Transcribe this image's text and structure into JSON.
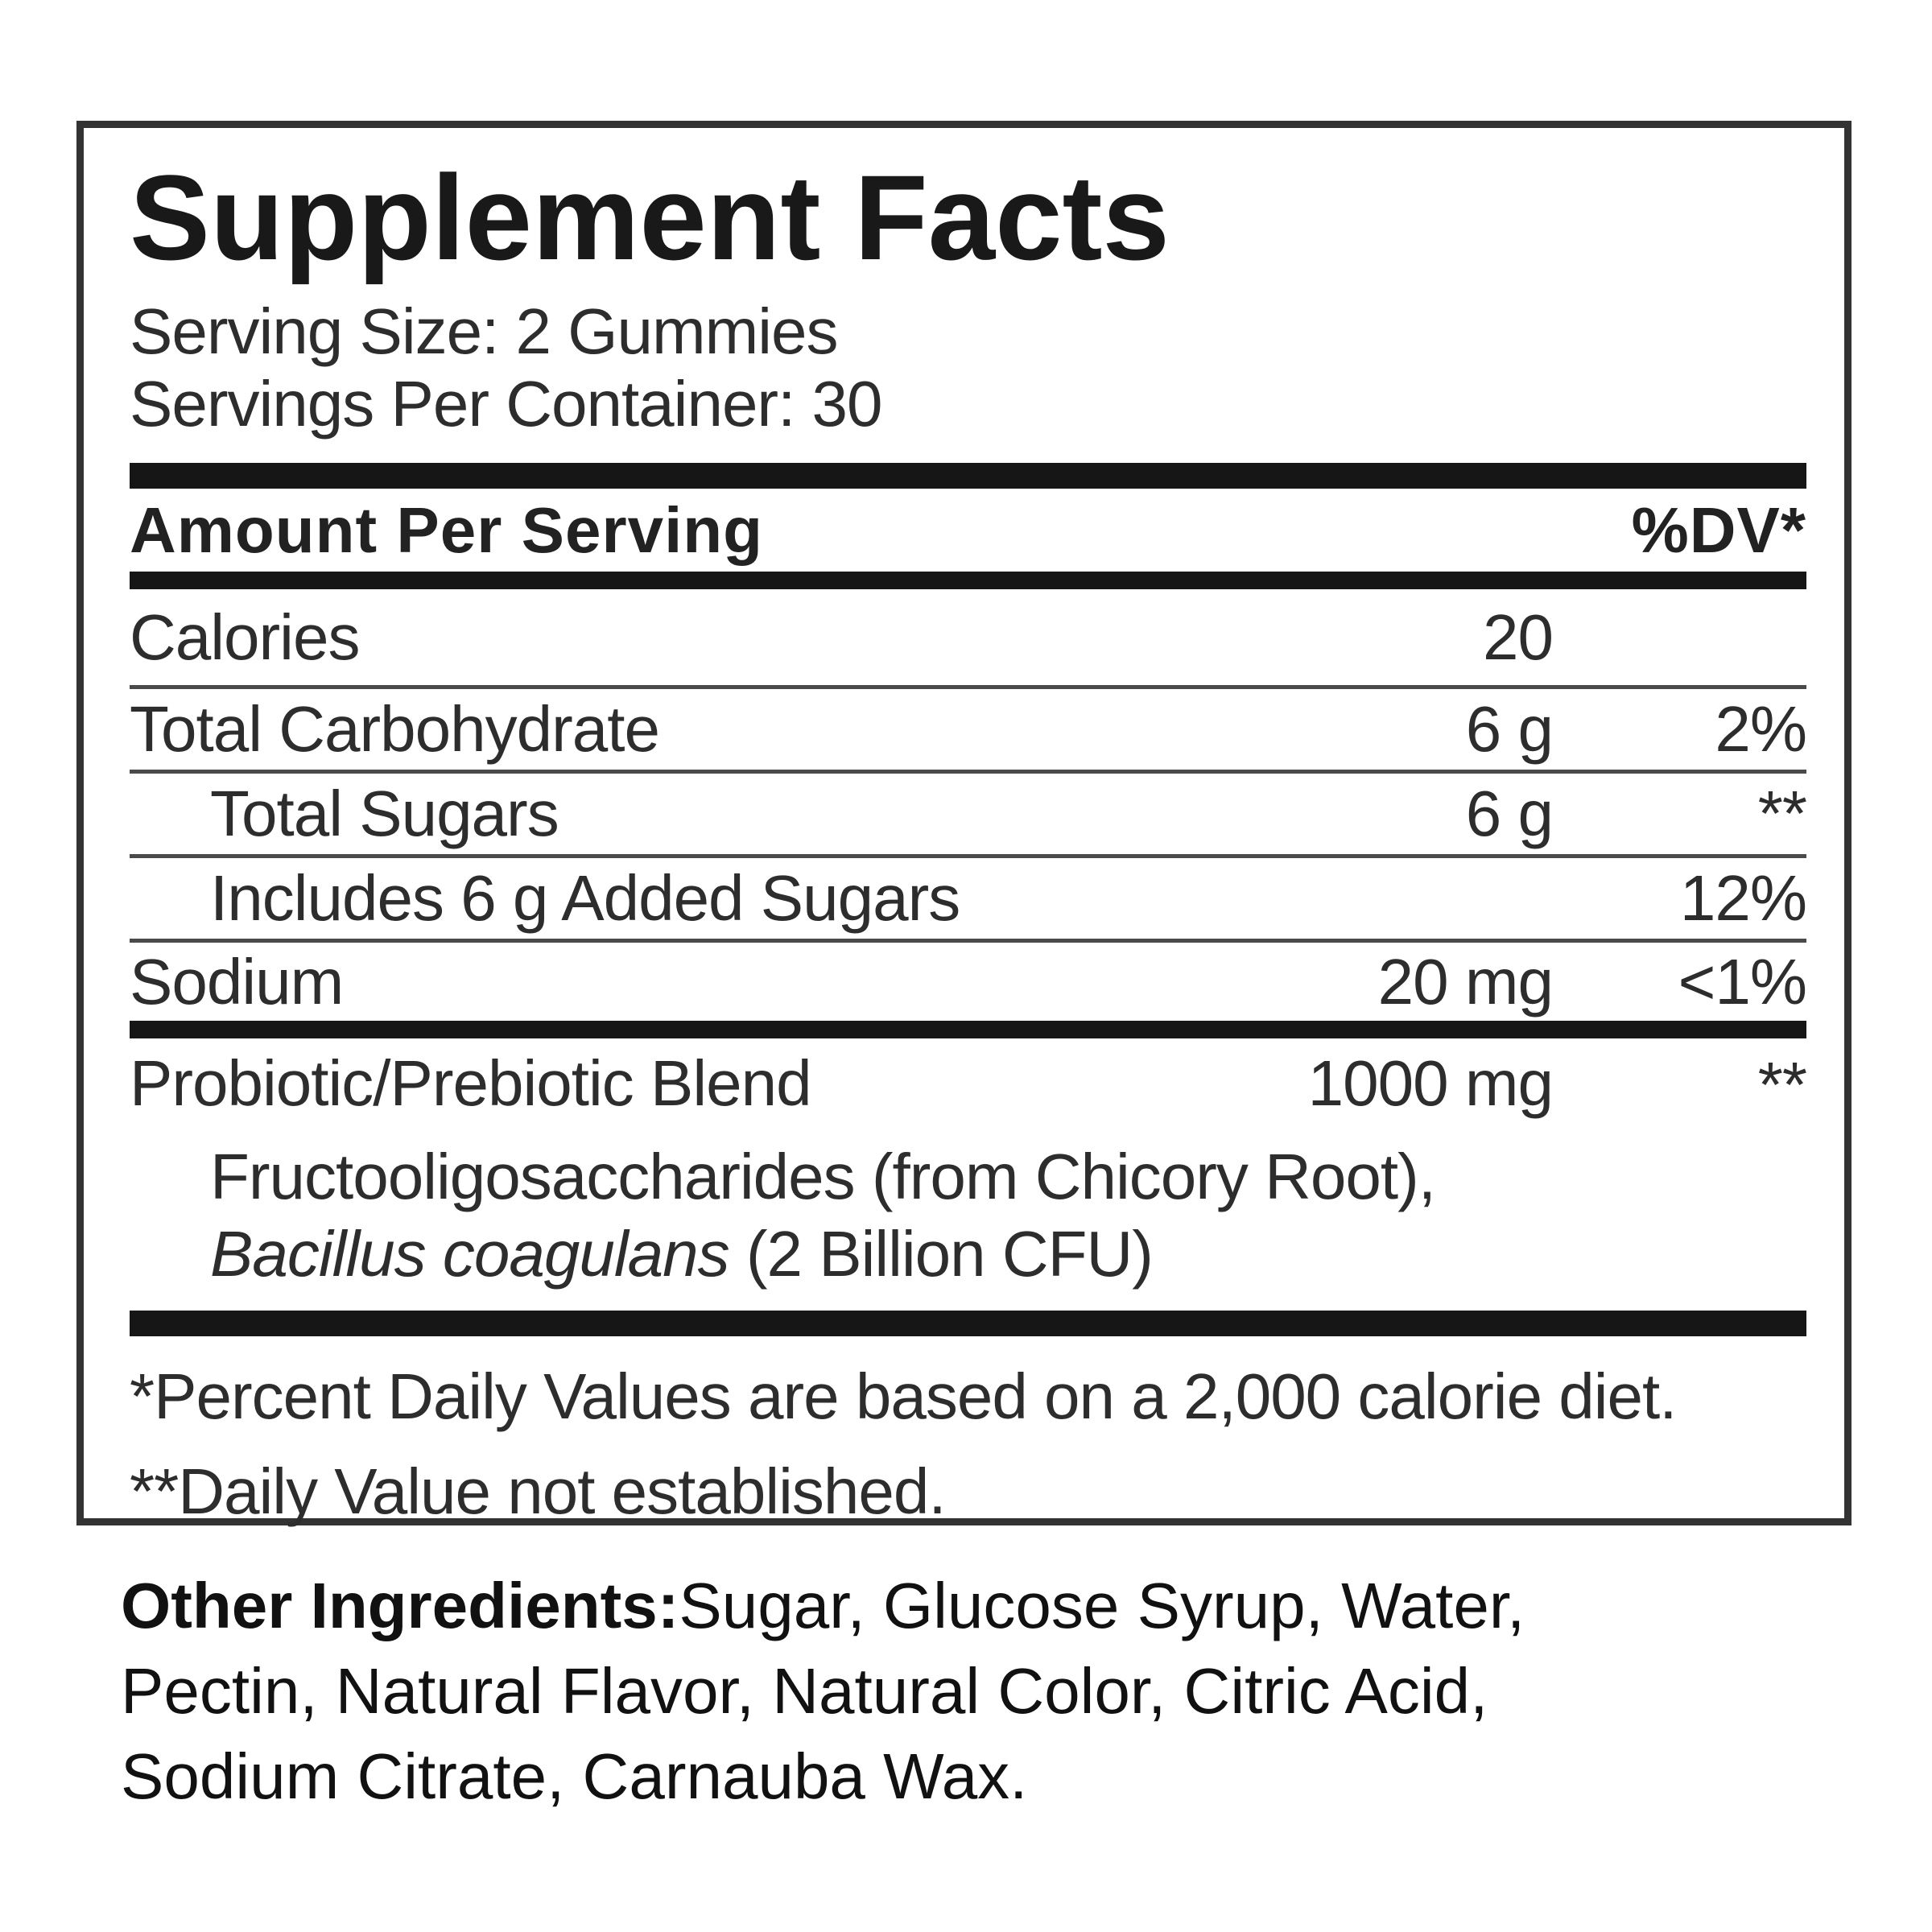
{
  "colors": {
    "background": "#ffffff",
    "text": "#2d2d2d",
    "heavy_bar": "#161616",
    "hairline": "#4a4a4a",
    "box_border": "#333333"
  },
  "supplement_facts": {
    "title": "Supplement Facts",
    "serving_size": "Serving Size: 2 Gummies",
    "servings_per_container": "Servings Per Container: 30",
    "columns": {
      "amount_header": "Amount Per Serving",
      "dv_header": "%DV*"
    },
    "rows": [
      {
        "name": "Calories",
        "amount": "20",
        "dv": ""
      },
      {
        "name": "Total Carbohydrate",
        "amount": "6 g",
        "dv": "2%"
      },
      {
        "name": "Total Sugars",
        "amount": "6 g",
        "dv": "**"
      },
      {
        "name": "Includes 6 g Added Sugars",
        "amount": "",
        "dv": "12%"
      },
      {
        "name": "Sodium",
        "amount": "20 mg",
        "dv": "<1%"
      }
    ],
    "blend": {
      "name": "Probiotic/Prebiotic Blend",
      "amount": "1000 mg",
      "dv": "**",
      "sub_line_1": "Fructooligosaccharides (from Chicory Root),",
      "sub_line_2_italic": "Bacillus coagulans",
      "sub_line_2_rest": " (2 Billion CFU)"
    },
    "footnotes": {
      "daily_value": "*Percent Daily Values are based on a 2,000 calorie diet.",
      "not_established": "**Daily Value not established."
    }
  },
  "other_ingredients": {
    "label": "Other Ingredients:",
    "line_1": "Sugar, Glucose Syrup, Water,",
    "line_2": "Pectin, Natural Flavor, Natural Color, Citric Acid,",
    "line_3": "Sodium Citrate, Carnauba Wax."
  }
}
